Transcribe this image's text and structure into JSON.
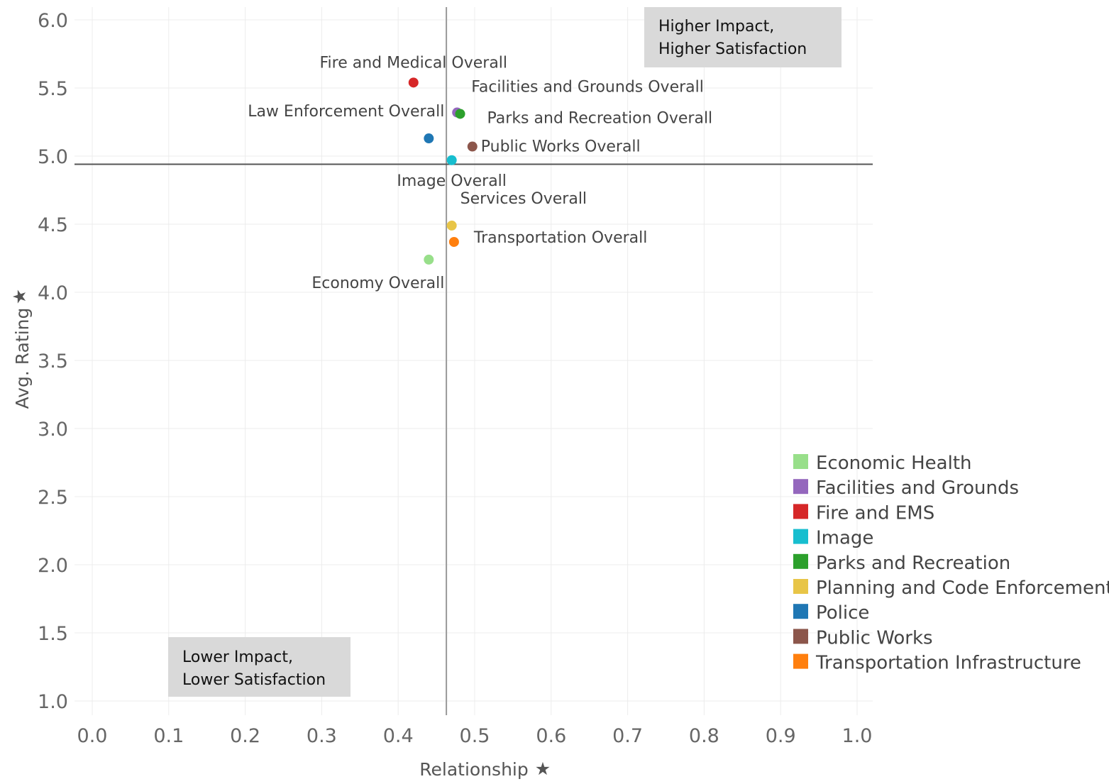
{
  "chart_data": {
    "type": "scatter",
    "xlabel": "Relationship",
    "ylabel": "Avg. Rating",
    "xlim": [
      0.0,
      1.0
    ],
    "ylim": [
      1.0,
      6.0
    ],
    "x_ticks": [
      "0.0",
      "0.1",
      "0.2",
      "0.3",
      "0.4",
      "0.5",
      "0.6",
      "0.7",
      "0.8",
      "0.9",
      "1.0"
    ],
    "y_ticks": [
      "1.0",
      "1.5",
      "2.0",
      "2.5",
      "3.0",
      "3.5",
      "4.0",
      "4.5",
      "5.0",
      "5.5",
      "6.0"
    ],
    "grid": true,
    "reference_lines": {
      "x": 0.463,
      "y": 4.94
    },
    "legend_position": "bottom-right",
    "legend": [
      {
        "name": "Economic Health",
        "color": "#98df8a"
      },
      {
        "name": "Facilities and Grounds",
        "color": "#9467bd"
      },
      {
        "name": "Fire and EMS",
        "color": "#d62728"
      },
      {
        "name": "Image",
        "color": "#17becf"
      },
      {
        "name": "Parks and Recreation",
        "color": "#2ca02c"
      },
      {
        "name": "Planning and Code Enforcement",
        "color": "#e8c547"
      },
      {
        "name": "Police",
        "color": "#1f77b4"
      },
      {
        "name": "Public Works",
        "color": "#8c564b"
      },
      {
        "name": "Transportation Infrastructure",
        "color": "#ff7f0e"
      }
    ],
    "points": [
      {
        "label": "Fire and Medical Overall",
        "category": "Fire and EMS",
        "x": 0.42,
        "y": 5.54,
        "color": "#d62728"
      },
      {
        "label": "Facilities and Grounds Overall",
        "category": "Facilities and Grounds",
        "x": 0.477,
        "y": 5.32,
        "color": "#9467bd"
      },
      {
        "label": "Parks and Recreation Overall",
        "category": "Parks and Recreation",
        "x": 0.481,
        "y": 5.31,
        "color": "#2ca02c"
      },
      {
        "label": "Law Enforcement Overall",
        "category": "Police",
        "x": 0.44,
        "y": 5.13,
        "color": "#1f77b4"
      },
      {
        "label": "Public Works Overall",
        "category": "Public Works",
        "x": 0.497,
        "y": 5.07,
        "color": "#8c564b"
      },
      {
        "label": "Image Overall",
        "category": "Image",
        "x": 0.47,
        "y": 4.97,
        "color": "#17becf"
      },
      {
        "label": "Services Overall",
        "category": "Planning and Code Enforcement",
        "x": 0.47,
        "y": 4.49,
        "color": "#e8c547"
      },
      {
        "label": "Transportation Overall",
        "category": "Transportation Infrastructure",
        "x": 0.473,
        "y": 4.37,
        "color": "#ff7f0e"
      },
      {
        "label": "Economy Overall",
        "category": "Economic Health",
        "x": 0.44,
        "y": 4.24,
        "color": "#98df8a"
      }
    ],
    "annotations": [
      {
        "lines": [
          "Higher Impact,",
          "Higher Satisfaction"
        ],
        "position": "top-right"
      },
      {
        "lines": [
          "Lower Impact,",
          "Lower Satisfaction"
        ],
        "position": "bottom-left"
      }
    ]
  }
}
